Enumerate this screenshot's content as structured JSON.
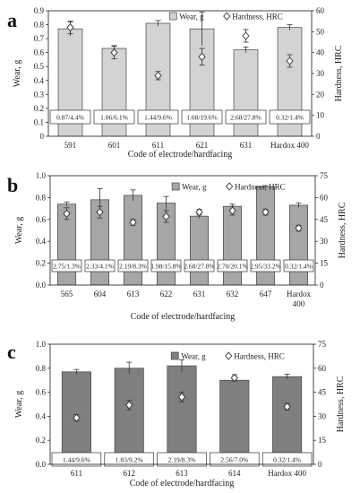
{
  "chart_data": [
    {
      "type": "bar",
      "panel_label": "a",
      "categories": [
        "591",
        "601",
        "611",
        "621",
        "631",
        "Hardox 400"
      ],
      "series": [
        {
          "name": "Wear, g",
          "axis": "left",
          "values": [
            0.77,
            0.63,
            0.81,
            0.77,
            0.62,
            0.78
          ],
          "errors": [
            0.05,
            0.02,
            0.02,
            0.12,
            0.02,
            0.02
          ]
        },
        {
          "name": "Hardness, HRC",
          "axis": "right",
          "values": [
            52,
            40,
            29,
            38,
            48,
            36
          ],
          "errors": [
            3,
            3,
            2,
            4,
            3,
            3
          ]
        }
      ],
      "box_labels": [
        "0.87/4.4%",
        "1.06/6.1%",
        "1.44/9.6%",
        "1.68/19.6%",
        "2.68/27.8%",
        "0.32/1.4%"
      ],
      "xlabel": "Code of electrode/hardfacing",
      "ylabel": "Wear, g",
      "ylabel_right": "Hardness, HRC",
      "ylim": [
        0,
        0.9
      ],
      "ylim_right": [
        0,
        60
      ],
      "yticks": [
        "0",
        "0.1",
        "0.2",
        "0.3",
        "0.4",
        "0.5",
        "0.6",
        "0.7",
        "0.8",
        "0.9"
      ],
      "yticks_right": [
        "0",
        "10",
        "20",
        "30",
        "40",
        "50",
        "60"
      ],
      "bar_color": "#d3d3d3",
      "legend_position": "top-right",
      "grid": false
    },
    {
      "type": "bar",
      "panel_label": "b",
      "categories": [
        "565",
        "604",
        "613",
        "622",
        "631",
        "632",
        "647",
        "Hardox 400"
      ],
      "series": [
        {
          "name": "Wear, g",
          "axis": "left",
          "values": [
            0.74,
            0.78,
            0.82,
            0.75,
            0.63,
            0.72,
            0.9,
            0.73
          ],
          "errors": [
            0.02,
            0.1,
            0.05,
            0.06,
            0.02,
            0.02,
            0.01,
            0.02
          ]
        },
        {
          "name": "Hardness, HRC",
          "axis": "right",
          "values": [
            49,
            50,
            43,
            47,
            50,
            51,
            50,
            39
          ],
          "errors": [
            4,
            4,
            2,
            4,
            2,
            3,
            2,
            2
          ]
        }
      ],
      "box_labels": [
        "2.75/1.3%",
        "2.33/4.1%",
        "2.19/8.3%",
        "1.98/15.8%",
        "2.68/27.8%",
        "2.70/20.1%",
        "2.95/33.2%",
        "0.32/1.4%"
      ],
      "xlabel": "Code of electrode/hardfacing",
      "ylabel": "Wear, g",
      "ylabel_right": "Hardness, HRC",
      "ylim": [
        0,
        1.0
      ],
      "ylim_right": [
        0,
        75
      ],
      "yticks": [
        "0.0",
        "0.2",
        "0.4",
        "0.6",
        "0.8",
        "1.0"
      ],
      "yticks_right": [
        "0",
        "15",
        "30",
        "45",
        "60",
        "75"
      ],
      "bar_color": "#a6a6a6",
      "legend_position": "top-right",
      "grid": false
    },
    {
      "type": "bar",
      "panel_label": "c",
      "categories": [
        "611",
        "612",
        "613",
        "614",
        "Hardox 400"
      ],
      "series": [
        {
          "name": "Wear, g",
          "axis": "left",
          "values": [
            0.77,
            0.8,
            0.82,
            0.7,
            0.73
          ],
          "errors": [
            0.02,
            0.05,
            0.05,
            0.01,
            0.02
          ]
        },
        {
          "name": "Hardness, HRC",
          "axis": "right",
          "values": [
            29,
            37,
            42,
            54,
            36
          ],
          "errors": [
            2,
            3,
            3,
            2,
            2
          ]
        }
      ],
      "box_labels": [
        "1.44/9.6%",
        "1.83/9.2%",
        "2.19/8.3%",
        "2.56/7.0%",
        "0.32/1.4%"
      ],
      "xlabel": "Code of electrode/hardfacing",
      "ylabel": "Wear, g",
      "ylabel_right": "Hardness, HRC",
      "ylim": [
        0,
        1.0
      ],
      "ylim_right": [
        0,
        75
      ],
      "yticks": [
        "0.0",
        "0.2",
        "0.4",
        "0.6",
        "0.8",
        "1.0"
      ],
      "yticks_right": [
        "0",
        "15",
        "30",
        "45",
        "60",
        "75"
      ],
      "bar_color": "#7f7f7f",
      "legend_position": "top-right",
      "grid": false
    }
  ]
}
